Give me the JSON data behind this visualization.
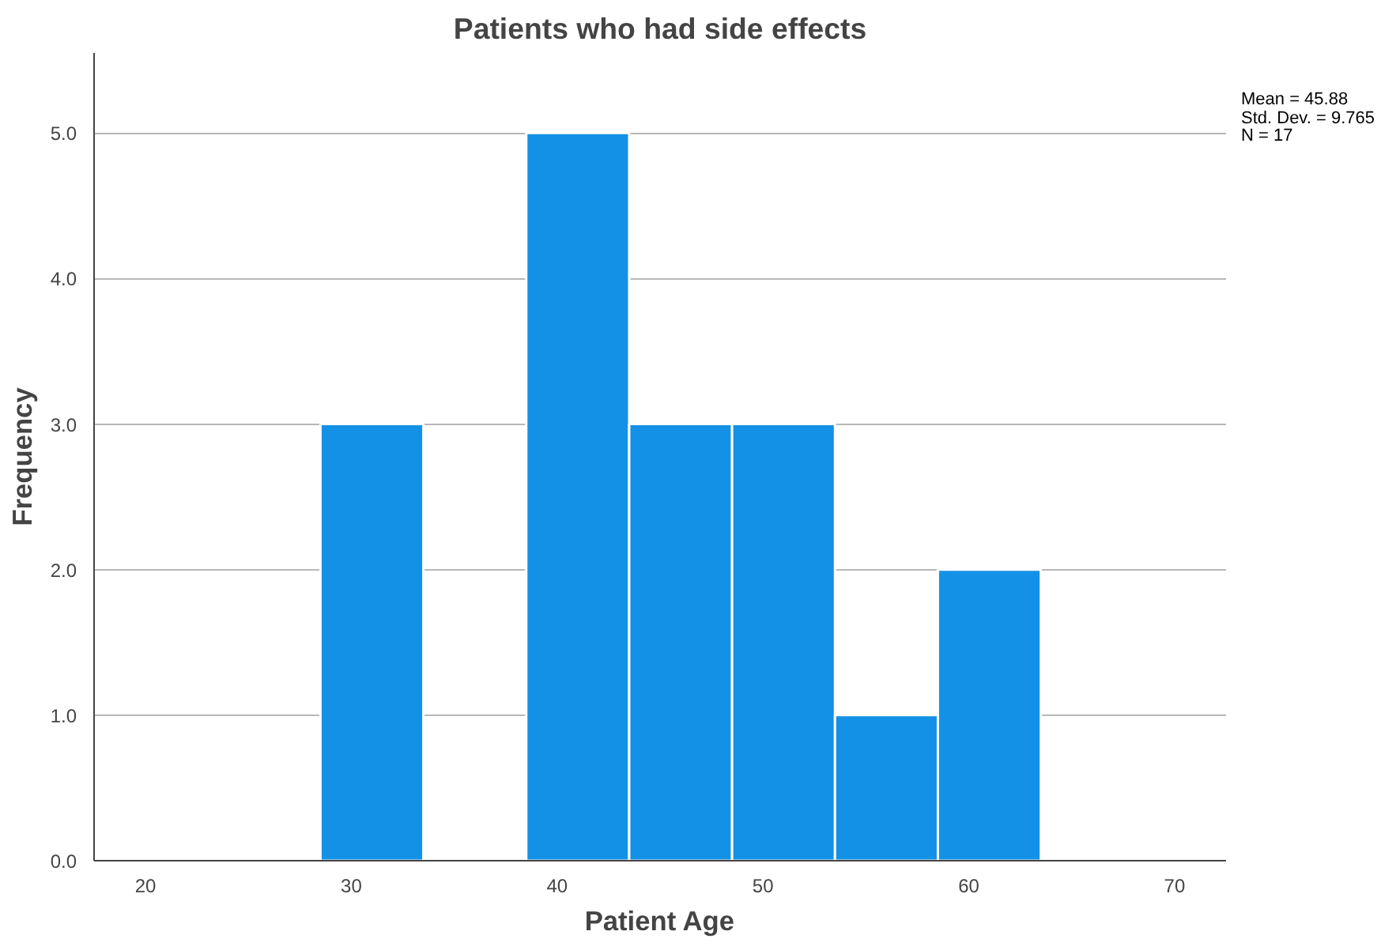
{
  "chart_data": {
    "type": "histogram",
    "title": "Patients who had side effects",
    "xlabel": "Patient Age",
    "ylabel": "Frequency",
    "bins": [
      28.5,
      33.5,
      38.5,
      43.5,
      48.5,
      53.5,
      58.5,
      63.5
    ],
    "values": [
      3,
      0,
      5,
      3,
      3,
      1,
      2
    ],
    "color": "#1391e6",
    "xlim": [
      17.5,
      72.5
    ],
    "xticks": [
      20,
      30,
      40,
      50,
      60,
      70
    ],
    "ylim": [
      0,
      5.55
    ],
    "yticks": [
      {
        "value": 0,
        "label": "0.0"
      },
      {
        "value": 1,
        "label": "1.0"
      },
      {
        "value": 2,
        "label": "2.0"
      },
      {
        "value": 3,
        "label": "3.0"
      },
      {
        "value": 4,
        "label": "4.0"
      },
      {
        "value": 5,
        "label": "5.0"
      }
    ],
    "grid": "y",
    "annotations": [
      "Mean = 45.88",
      "Std. Dev. = 9.765",
      "N = 17"
    ]
  }
}
